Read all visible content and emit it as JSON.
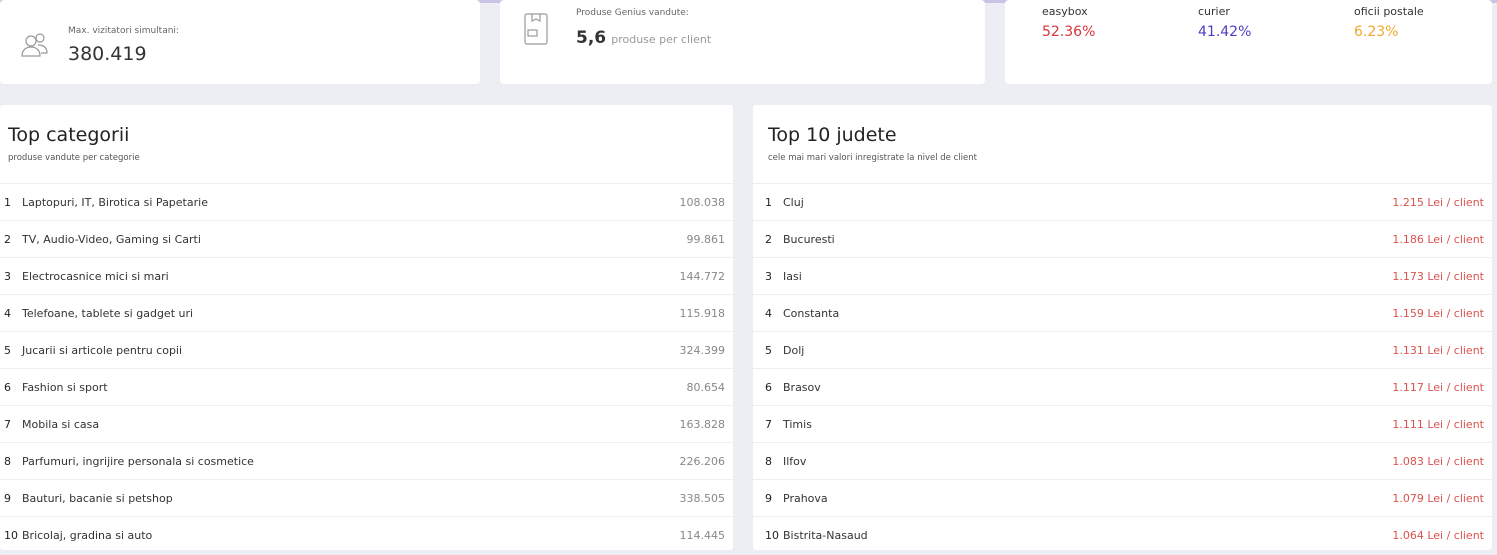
{
  "visitors": {
    "label": "Max. vizitatori simultani:",
    "value": "380.419",
    "icon": "users-icon"
  },
  "genius": {
    "label": "Produse Genius vandute:",
    "value": "5,6",
    "unit": "produse per client",
    "icon": "package-icon"
  },
  "delivery": [
    {
      "label": "easybox",
      "value": "52.36%",
      "color": "#d9343c"
    },
    {
      "label": "curier",
      "value": "41.42%",
      "color": "#4b3fc4"
    },
    {
      "label": "oficii postale",
      "value": "6.23%",
      "color": "#f0a830"
    }
  ],
  "categories": {
    "title": "Top categorii",
    "subtitle": "produse vandute per categorie",
    "rows": [
      {
        "n": "1",
        "label": "Laptopuri, IT, Birotica si Papetarie",
        "value": "108.038"
      },
      {
        "n": "2",
        "label": "TV, Audio-Video, Gaming si Carti",
        "value": "99.861"
      },
      {
        "n": "3",
        "label": "Electrocasnice mici si mari",
        "value": "144.772"
      },
      {
        "n": "4",
        "label": "Telefoane, tablete si gadget uri",
        "value": "115.918"
      },
      {
        "n": "5",
        "label": "Jucarii si articole pentru copii",
        "value": "324.399"
      },
      {
        "n": "6",
        "label": "Fashion si sport",
        "value": "80.654"
      },
      {
        "n": "7",
        "label": "Mobila si casa",
        "value": "163.828"
      },
      {
        "n": "8",
        "label": "Parfumuri, ingrijire personala si cosmetice",
        "value": "226.206"
      },
      {
        "n": "9",
        "label": "Bauturi, bacanie si petshop",
        "value": "338.505"
      },
      {
        "n": "10",
        "label": "Bricolaj, gradina si auto",
        "value": "114.445"
      }
    ]
  },
  "counties": {
    "title": "Top 10 judete",
    "subtitle": "cele mai mari valori inregistrate la nivel de client",
    "rows": [
      {
        "n": "1",
        "label": "Cluj",
        "value": "1.215 Lei / client"
      },
      {
        "n": "2",
        "label": "Bucuresti",
        "value": "1.186 Lei / client"
      },
      {
        "n": "3",
        "label": "Iasi",
        "value": "1.173 Lei / client"
      },
      {
        "n": "4",
        "label": "Constanta",
        "value": "1.159 Lei / client"
      },
      {
        "n": "5",
        "label": "Dolj",
        "value": "1.131 Lei / client"
      },
      {
        "n": "6",
        "label": "Brasov",
        "value": "1.117 Lei / client"
      },
      {
        "n": "7",
        "label": "Timis",
        "value": "1.111 Lei / client"
      },
      {
        "n": "8",
        "label": "Ilfov",
        "value": "1.083 Lei / client"
      },
      {
        "n": "9",
        "label": "Prahova",
        "value": "1.079 Lei / client"
      },
      {
        "n": "10",
        "label": "Bistrita-Nasaud",
        "value": "1.064 Lei / client"
      }
    ]
  }
}
